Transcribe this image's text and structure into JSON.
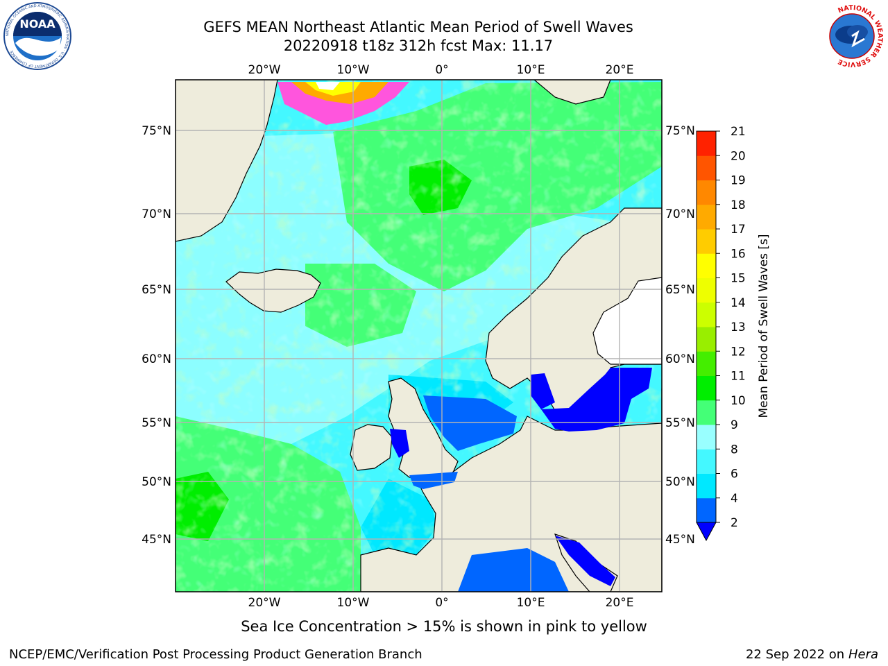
{
  "title_line1": "GEFS MEAN Northeast Atlantic Mean Period of Swell Waves",
  "title_line2": "20220918 t18z 312h fcst   Max: 11.17",
  "caption": "Sea Ice Concentration > 15% is shown in pink to yellow",
  "footer_left": "NCEP/EMC/Verification Post Processing Product Generation Branch",
  "footer_right_date": "22 Sep 2022 on",
  "footer_right_machine": "Hera",
  "logos": {
    "left": "NOAA",
    "left_ring_text": "NATIONAL OCEANIC AND ATMOSPHERIC ADMINISTRATION · U.S. DEPARTMENT OF COMMERCE",
    "right_ring_text": "NATIONAL WEATHER SERVICE"
  },
  "map": {
    "lon_labels": [
      "20°W",
      "10°W",
      "0°",
      "10°E",
      "20°E"
    ],
    "lat_labels": [
      "75°N",
      "70°N",
      "65°N",
      "60°N",
      "55°N",
      "50°N",
      "45°N"
    ],
    "colors": {
      "land": "#eeecdc",
      "grid": "#b3b3b3",
      "coast": "#000000"
    }
  },
  "colorbar": {
    "label": "Mean Period of Swell Waves [s]",
    "ticks": [
      "2",
      "4",
      "6",
      "8",
      "9",
      "10",
      "11",
      "12",
      "13",
      "14",
      "15",
      "16",
      "17",
      "18",
      "19",
      "20",
      "21"
    ],
    "colors": [
      "#0066ff",
      "#00e8ff",
      "#44f8ff",
      "#99ffff",
      "#44ff77",
      "#00ee00",
      "#44ee00",
      "#99ee00",
      "#ccff00",
      "#eeff00",
      "#ffff00",
      "#ffcc00",
      "#ffaa00",
      "#ff8800",
      "#ff5500",
      "#ff2200"
    ],
    "under_color": "#0000ff"
  }
}
